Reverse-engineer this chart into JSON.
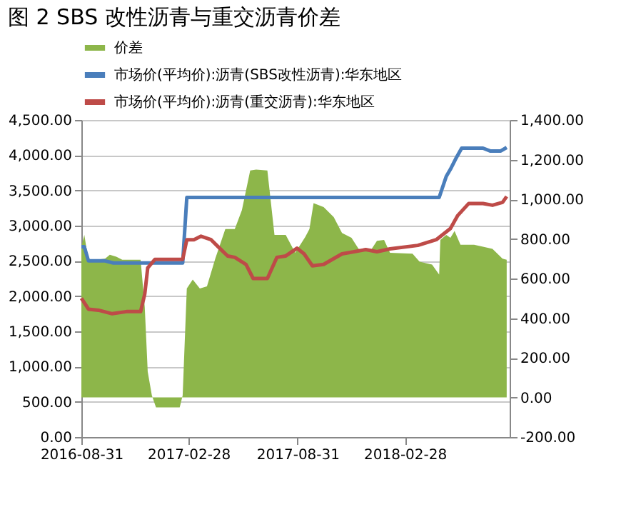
{
  "chart_data": {
    "type": "line",
    "title": "图 2 SBS 改性沥青与重交沥青价差",
    "xlim": [
      "2016-08-31",
      "2018-08-24"
    ],
    "xticks": [
      "2016-08-31",
      "2017-02-28",
      "2017-08-31",
      "2018-02-28"
    ],
    "ylim": [
      0,
      4500
    ],
    "yticks": [
      {
        "value": 0,
        "label": "0.00"
      },
      {
        "value": 500,
        "label": "500.00"
      },
      {
        "value": 1000,
        "label": "1,000.00"
      },
      {
        "value": 1500,
        "label": "1,500.00"
      },
      {
        "value": 2000,
        "label": "2,000.00"
      },
      {
        "value": 2500,
        "label": "2,500.00"
      },
      {
        "value": 3000,
        "label": "3,000.00"
      },
      {
        "value": 3500,
        "label": "3,500.00"
      },
      {
        "value": 4000,
        "label": "4,000.00"
      },
      {
        "value": 4500,
        "label": "4,500.00"
      }
    ],
    "y2lim": [
      -200,
      1400
    ],
    "y2ticks": [
      {
        "value": -200,
        "label": "-200.00"
      },
      {
        "value": 0,
        "label": "0.00"
      },
      {
        "value": 200,
        "label": "200.00"
      },
      {
        "value": 400,
        "label": "400.00"
      },
      {
        "value": 600,
        "label": "600.00"
      },
      {
        "value": 800,
        "label": "800.00"
      },
      {
        "value": 1000,
        "label": "1,000.00"
      },
      {
        "value": 1200,
        "label": "1,200.00"
      },
      {
        "value": 1400,
        "label": "1,400.00"
      }
    ],
    "grid": "y",
    "legend": "top",
    "marker": "none",
    "line_style": "solid",
    "series": [
      {
        "name": "价差",
        "type": "area",
        "axis": "y2",
        "color": "#8db64a",
        "x": [
          "2016-08-31",
          "2016-09-05",
          "2016-09-12",
          "2016-10-10",
          "2016-10-18",
          "2016-10-29",
          "2016-11-08",
          "2016-12-09",
          "2016-12-16",
          "2016-12-21",
          "2016-12-28",
          "2017-01-04",
          "2017-02-13",
          "2017-02-18",
          "2017-02-25",
          "2017-03-07",
          "2017-03-19",
          "2017-03-31",
          "2017-04-14",
          "2017-05-01",
          "2017-05-17",
          "2017-05-29",
          "2017-06-12",
          "2017-06-22",
          "2017-07-11",
          "2017-07-23",
          "2017-08-11",
          "2017-08-27",
          "2017-09-13",
          "2017-09-20",
          "2017-09-27",
          "2017-10-14",
          "2017-10-31",
          "2017-11-14",
          "2017-11-30",
          "2017-12-12",
          "2017-12-31",
          "2018-01-12",
          "2018-01-24",
          "2018-02-03",
          "2018-03-13",
          "2018-03-25",
          "2018-04-15",
          "2018-04-27",
          "2018-04-29",
          "2018-05-09",
          "2018-05-16",
          "2018-05-23",
          "2018-06-02",
          "2018-06-25",
          "2018-07-10",
          "2018-07-26",
          "2018-08-12",
          "2018-08-19"
        ],
        "values": [
          760,
          820,
          690,
          700,
          720,
          710,
          695,
          695,
          455,
          130,
          10,
          -50,
          -50,
          10,
          550,
          595,
          550,
          560,
          700,
          850,
          850,
          945,
          1145,
          1150,
          1145,
          820,
          820,
          730,
          810,
          850,
          980,
          960,
          910,
          830,
          805,
          750,
          735,
          790,
          795,
          730,
          725,
          685,
          670,
          620,
          795,
          820,
          805,
          840,
          770,
          770,
          760,
          750,
          700,
          695
        ]
      },
      {
        "name": "市场价(平均价):沥青(SBS改性沥青):华东地区",
        "axis": "y",
        "color": "#4a7ebb",
        "x": [
          "2016-08-31",
          "2016-09-05",
          "2016-09-12",
          "2016-10-10",
          "2016-10-24",
          "2017-02-18",
          "2017-02-25",
          "2018-04-27",
          "2018-05-09",
          "2018-05-16",
          "2018-05-25",
          "2018-06-04",
          "2018-07-10",
          "2018-07-22",
          "2018-08-09",
          "2018-08-19"
        ],
        "values": [
          2700,
          2700,
          2500,
          2500,
          2470,
          2470,
          3400,
          3400,
          3700,
          3800,
          3950,
          4100,
          4100,
          4060,
          4060,
          4110
        ]
      },
      {
        "name": "市场价(平均价):沥青(重交沥青):华东地区",
        "axis": "y",
        "color": "#be4b48",
        "x": [
          "2016-08-31",
          "2016-09-12",
          "2016-09-29",
          "2016-10-22",
          "2016-11-15",
          "2016-12-09",
          "2016-12-16",
          "2016-12-21",
          "2017-01-02",
          "2017-02-18",
          "2017-02-25",
          "2017-03-09",
          "2017-03-21",
          "2017-04-07",
          "2017-04-19",
          "2017-05-05",
          "2017-05-17",
          "2017-06-05",
          "2017-06-17",
          "2017-07-11",
          "2017-07-27",
          "2017-08-11",
          "2017-08-30",
          "2017-09-11",
          "2017-09-25",
          "2017-10-14",
          "2017-11-14",
          "2017-12-24",
          "2018-01-12",
          "2018-02-03",
          "2018-03-22",
          "2018-04-22",
          "2018-05-16",
          "2018-05-28",
          "2018-06-16",
          "2018-07-10",
          "2018-07-26",
          "2018-08-12",
          "2018-08-19"
        ],
        "values": [
          1970,
          1815,
          1800,
          1750,
          1780,
          1780,
          2030,
          2400,
          2520,
          2520,
          2800,
          2800,
          2850,
          2800,
          2700,
          2570,
          2550,
          2450,
          2250,
          2250,
          2550,
          2570,
          2680,
          2600,
          2430,
          2450,
          2600,
          2660,
          2630,
          2670,
          2720,
          2800,
          2960,
          3140,
          3315,
          3315,
          3290,
          3330,
          3415
        ]
      }
    ]
  }
}
